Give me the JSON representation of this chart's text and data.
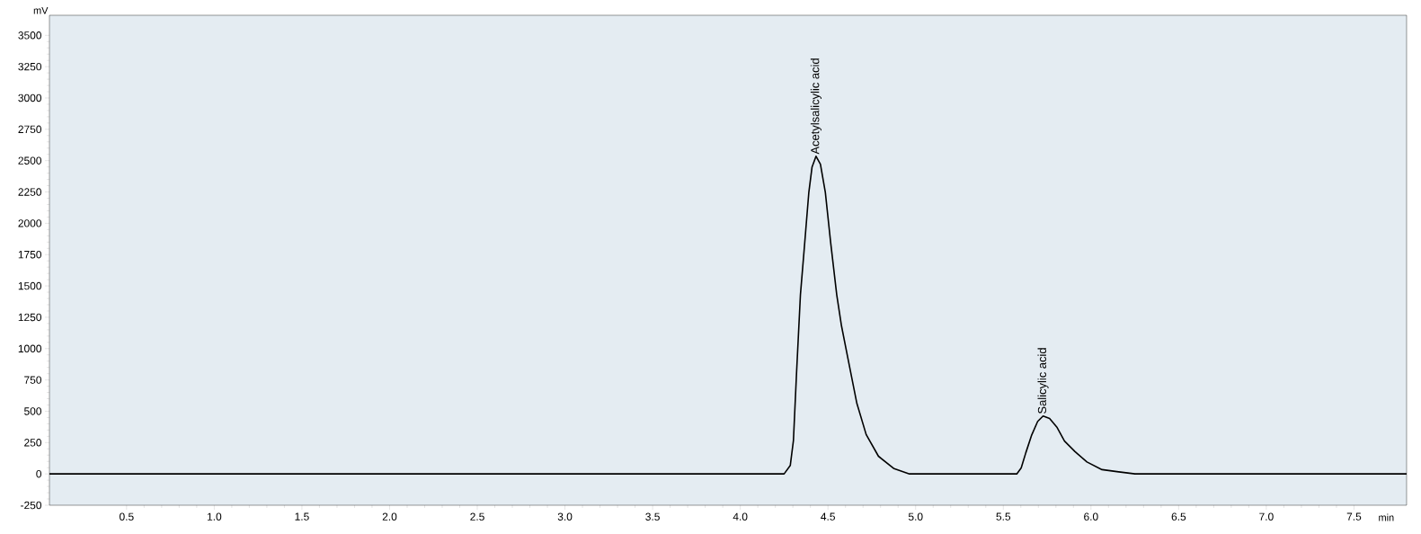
{
  "chart_data": {
    "type": "line",
    "xlabel": "min",
    "ylabel": "mV",
    "xlim": [
      0.06,
      7.8
    ],
    "ylim": [
      -250,
      3660
    ],
    "xticks": [
      0.5,
      {
        "value": 1,
        "label": "1.0"
      },
      1.5,
      {
        "value": 2,
        "label": "2.0"
      },
      2.5,
      {
        "value": 3,
        "label": "3.0"
      },
      3.5,
      {
        "value": 4,
        "label": "4.0"
      },
      4.5,
      {
        "value": 5,
        "label": "5.0"
      },
      5.5,
      {
        "value": 6,
        "label": "6.0"
      },
      6.5,
      {
        "value": 7,
        "label": "7.0"
      },
      7.5
    ],
    "yticks": [
      -250,
      0,
      250,
      500,
      750,
      1000,
      1250,
      1500,
      1750,
      2000,
      2250,
      2500,
      2750,
      3000,
      3250,
      3500
    ],
    "series": [
      {
        "color": "#000000",
        "x": [
          0.06,
          4.08,
          4.25,
          4.285,
          4.303,
          4.321,
          4.343,
          4.365,
          4.391,
          4.409,
          4.432,
          4.457,
          4.485,
          4.515,
          4.55,
          4.577,
          4.612,
          4.665,
          4.718,
          4.788,
          4.877,
          4.965,
          5.577,
          5.602,
          5.628,
          5.662,
          5.696,
          5.727,
          5.764,
          5.807,
          5.849,
          5.909,
          5.977,
          6.063,
          6.148,
          6.251,
          7.8
        ],
        "values": [
          0,
          0,
          0,
          67,
          265,
          810,
          1430,
          1802,
          2248,
          2447,
          2535,
          2471,
          2248,
          1851,
          1430,
          1183,
          934,
          562,
          314,
          141,
          42,
          0,
          0,
          47,
          167,
          311,
          419,
          462,
          442,
          370,
          262,
          178,
          95,
          34,
          18,
          0,
          0
        ]
      }
    ],
    "annotations": [
      {
        "text": "Acetylsalicylic acid",
        "x": 4.432,
        "y": 2535
      },
      {
        "text": "Salicylic acid",
        "x": 5.727,
        "y": 462
      }
    ]
  }
}
